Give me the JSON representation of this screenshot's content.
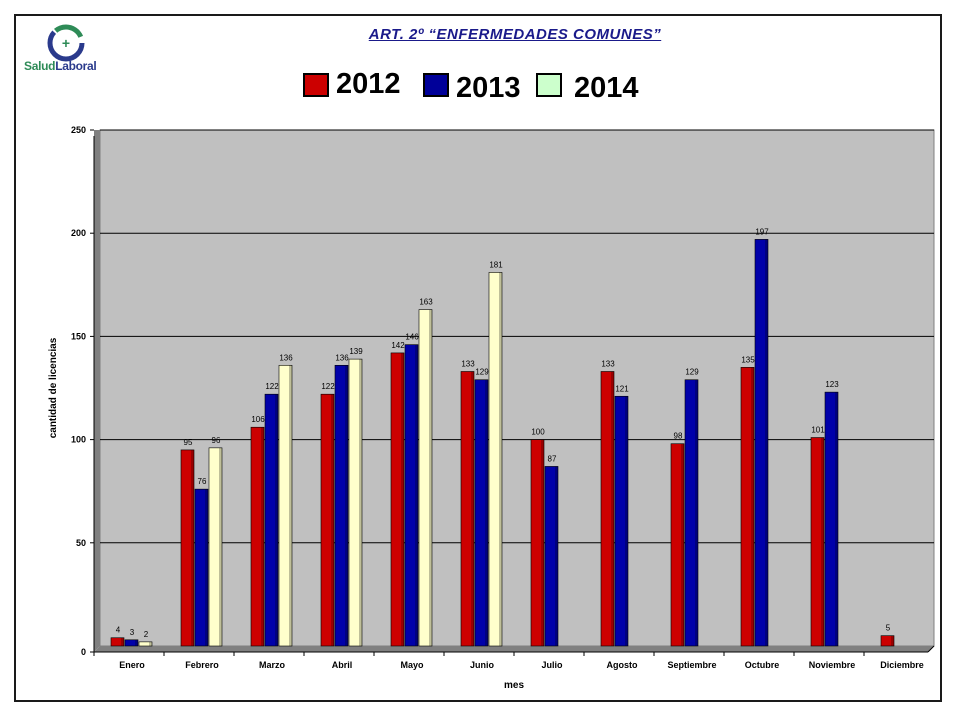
{
  "header": {
    "title": "ART. 2º “ENFERMEDADES COMUNES”",
    "logo": {
      "part1": "Salud",
      "part2": "Laboral",
      "icon": "salud-laboral-logo"
    }
  },
  "legend": {
    "items": [
      {
        "label": "2012",
        "color": "#cc0000"
      },
      {
        "label": "2013",
        "color": "#000099"
      },
      {
        "label": "2014",
        "color": "#ccffcc"
      }
    ]
  },
  "chart_data": {
    "type": "bar",
    "xlabel": "mes",
    "ylabel": "cantidad de licencias",
    "ylim": [
      0,
      250
    ],
    "yticks": [
      0,
      50,
      100,
      150,
      200,
      250
    ],
    "grid": true,
    "categories": [
      "Enero",
      "Febrero",
      "Marzo",
      "Abril",
      "Mayo",
      "Junio",
      "Julio",
      "Agosto",
      "Septiembre",
      "Octubre",
      "Noviembre",
      "Diciembre"
    ],
    "series": [
      {
        "name": "2012",
        "color": "#cc0000",
        "values": [
          4,
          95,
          106,
          122,
          142,
          133,
          100,
          133,
          98,
          135,
          101,
          5
        ],
        "labels": [
          "4",
          "95",
          "106",
          "122",
          "142",
          "133",
          "100",
          "133",
          "98",
          "135",
          "101",
          "5"
        ]
      },
      {
        "name": "2013",
        "color": "#0000aa",
        "values": [
          3,
          76,
          122,
          136,
          146,
          129,
          87,
          121,
          129,
          197,
          123,
          null
        ],
        "labels": [
          "3",
          "76",
          "122",
          "136",
          "146",
          "129",
          "87",
          "121",
          "129",
          "197",
          "123",
          null
        ]
      },
      {
        "name": "2014",
        "color": "#ffffcc",
        "values": [
          2,
          96,
          136,
          139,
          163,
          181,
          null,
          null,
          null,
          null,
          null,
          null
        ],
        "labels": [
          "2",
          "96",
          "136",
          "139",
          "163",
          "181",
          null,
          null,
          null,
          null,
          null,
          null
        ]
      }
    ],
    "plot_background": "#c0c0c0"
  }
}
